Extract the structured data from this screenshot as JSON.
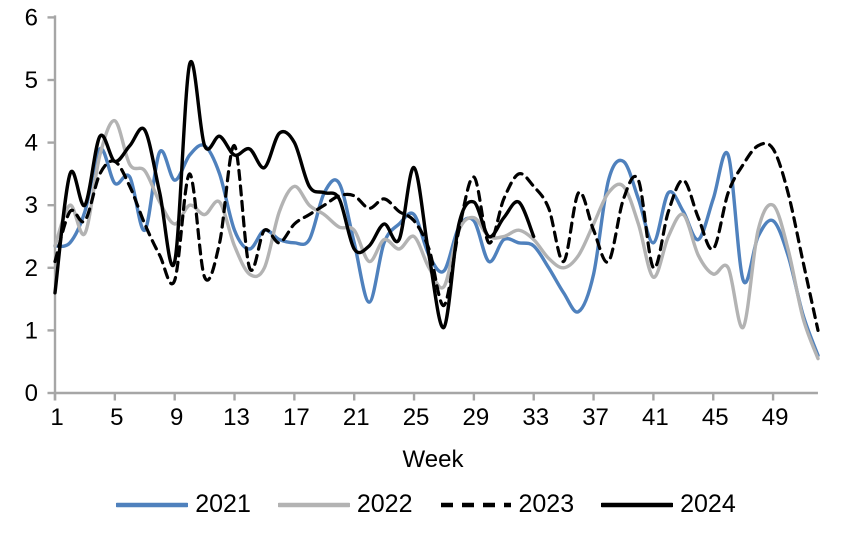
{
  "chart_data": {
    "type": "line",
    "title": "",
    "xlabel": "Week",
    "ylabel": "",
    "x_ticks": [
      1,
      5,
      9,
      13,
      17,
      21,
      25,
      29,
      33,
      37,
      41,
      45,
      49
    ],
    "y_ticks": [
      0,
      1,
      2,
      3,
      4,
      5,
      6
    ],
    "ylim": [
      0,
      6
    ],
    "x_range_weeks": [
      1,
      52
    ],
    "grid": false,
    "legend_position": "bottom",
    "axis_color": "#a6a6a6",
    "text_color": "#000000",
    "series": [
      {
        "name": "2021",
        "color": "#4f81bd",
        "line_style": "solid",
        "start_week": 1,
        "values": [
          2.35,
          2.4,
          2.9,
          3.9,
          3.35,
          3.45,
          2.6,
          3.85,
          3.4,
          3.8,
          3.95,
          3.5,
          2.6,
          2.3,
          2.6,
          2.45,
          2.4,
          2.45,
          3.2,
          3.35,
          2.4,
          1.45,
          2.4,
          2.7,
          2.85,
          2.2,
          1.95,
          2.65,
          2.75,
          2.1,
          2.45,
          2.4,
          2.35,
          2.0,
          1.6,
          1.3,
          1.9,
          3.4,
          3.7,
          3.1,
          2.4,
          3.2,
          2.9,
          2.45,
          3.1,
          3.8,
          1.8,
          2.5,
          2.75,
          2.2,
          1.25,
          0.6
        ]
      },
      {
        "name": "2022",
        "color": "#b3b3b3",
        "line_style": "solid",
        "start_week": 1,
        "values": [
          2.35,
          3.0,
          2.55,
          3.8,
          4.35,
          3.65,
          3.55,
          3.05,
          2.7,
          3.0,
          2.85,
          3.05,
          2.35,
          1.9,
          2.0,
          2.9,
          3.3,
          3.0,
          2.85,
          2.65,
          2.6,
          2.1,
          2.45,
          2.3,
          2.5,
          2.0,
          1.7,
          2.6,
          2.8,
          2.5,
          2.5,
          2.6,
          2.45,
          2.15,
          2.0,
          2.2,
          2.7,
          3.2,
          3.3,
          2.7,
          1.85,
          2.5,
          2.85,
          2.2,
          1.9,
          2.0,
          1.05,
          2.6,
          3.0,
          2.3,
          1.2,
          0.55
        ]
      },
      {
        "name": "2023",
        "color": "#000000",
        "line_style": "dashed",
        "start_week": 1,
        "values": [
          2.1,
          2.9,
          2.75,
          3.5,
          3.7,
          3.3,
          2.7,
          2.2,
          1.8,
          3.5,
          1.85,
          2.4,
          3.95,
          2.0,
          2.6,
          2.4,
          2.7,
          2.85,
          3.0,
          3.15,
          3.15,
          2.95,
          3.1,
          2.9,
          2.75,
          2.3,
          1.4,
          2.6,
          3.45,
          2.4,
          3.1,
          3.5,
          3.3,
          2.95,
          2.1,
          3.2,
          2.6,
          2.1,
          3.1,
          3.4,
          2.0,
          2.9,
          3.4,
          2.8,
          2.3,
          3.2,
          3.65,
          3.95,
          3.9,
          3.2,
          2.1,
          1.0
        ]
      },
      {
        "name": "2024",
        "color": "#000000",
        "line_style": "solid",
        "start_week": 1,
        "values": [
          1.6,
          3.5,
          3.0,
          4.1,
          3.7,
          3.95,
          4.2,
          3.2,
          2.1,
          5.25,
          3.95,
          4.1,
          3.8,
          3.9,
          3.6,
          4.15,
          4.0,
          3.3,
          3.2,
          3.1,
          2.3,
          2.35,
          2.7,
          2.45,
          3.6,
          2.2,
          1.05,
          2.7,
          3.05,
          2.5,
          2.8,
          3.05,
          2.5
        ]
      }
    ]
  }
}
